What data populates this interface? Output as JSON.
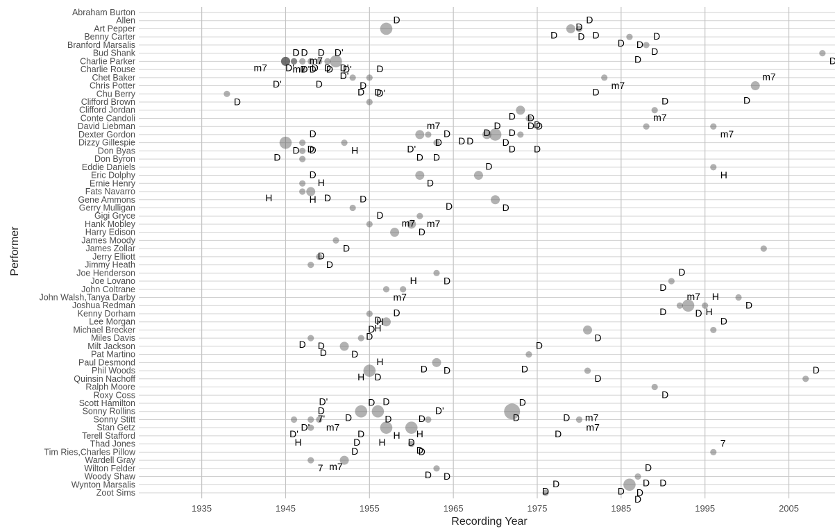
{
  "chart_data": {
    "type": "scatter",
    "title": "",
    "xlabel": "Recording Year",
    "ylabel": "Performer",
    "xlim": [
      1927.5,
      2010.5
    ],
    "x_ticks": [
      "1935",
      "1945",
      "1955",
      "1965",
      "1975",
      "1985",
      "1995",
      "2005"
    ],
    "x_tick_values": [
      1935,
      1945,
      1955,
      1965,
      1975,
      1985,
      1995,
      2005
    ],
    "grid": true,
    "categories": [
      "Abraham Burton",
      "Allen",
      "Art Pepper",
      "Benny Carter",
      "Branford Marsalis",
      "Bud Shank",
      "Charlie Parker",
      "Charlie Rouse",
      "Chet Baker",
      "Chris Potter",
      "Chu Berry",
      "Clifford Brown",
      "Clifford Jordan",
      "Conte Candoli",
      "David Liebman",
      "Dexter Gordon",
      "Dizzy Gillespie",
      "Don Byas",
      "Don Byron",
      "Eddie Daniels",
      "Eric Dolphy",
      "Ernie Henry",
      "Fats Navarro",
      "Gene Ammons",
      "Gerry Mulligan",
      "Gigi Gryce",
      "Hank Mobley",
      "Harry Edison",
      "James Moody",
      "James Zollar",
      "Jerry Elliott",
      "Jimmy Heath",
      "Joe Henderson",
      "Joe Lovano",
      "John Coltrane",
      "John Walsh,Tanya Darby",
      "Joshua Redman",
      "Kenny Dorham",
      "Lee Morgan",
      "Michael Brecker",
      "Miles Davis",
      "Milt Jackson",
      "Pat Martino",
      "Paul Desmond",
      "Phil Woods",
      "Quinsin Nachoff",
      "Ralph Moore",
      "Roxy Coss",
      "Scott Hamilton",
      "Sonny Rollins",
      "Sonny Stitt",
      "Stan Getz",
      "Terell Stafford",
      "Thad Jones",
      "Tim Ries,Charles Pillow",
      "Wardell Gray",
      "Wilton Felder",
      "Woody Shaw",
      "Wynton Marsalis",
      "Zoot Sims"
    ],
    "points": [
      {
        "performer": "Art Pepper",
        "year": 1957,
        "size": 3,
        "label": "D"
      },
      {
        "performer": "Art Pepper",
        "year": 1979,
        "size": 2,
        "label": "D"
      },
      {
        "performer": "Art Pepper",
        "year": 1980,
        "size": 1,
        "label": "D"
      },
      {
        "performer": "Benny Carter",
        "year": 1986,
        "size": 1,
        "label": "D"
      },
      {
        "performer": "Branford Marsalis",
        "year": 1988,
        "size": 1,
        "label": "D"
      },
      {
        "performer": "Bud Shank",
        "year": 2009,
        "size": 1,
        "label": "D"
      },
      {
        "performer": "Charlie Parker",
        "year": 1945,
        "size": 2,
        "label": "D"
      },
      {
        "performer": "Charlie Parker",
        "year": 1945,
        "size": 2,
        "label": "m7"
      },
      {
        "performer": "Charlie Parker",
        "year": 1945,
        "size": 2,
        "label": "D"
      },
      {
        "performer": "Charlie Parker",
        "year": 1946,
        "size": 1,
        "label": "D'"
      },
      {
        "performer": "Charlie Parker",
        "year": 1946,
        "size": 1,
        "label": "D"
      },
      {
        "performer": "Charlie Parker",
        "year": 1947,
        "size": 1,
        "label": "D'"
      },
      {
        "performer": "Charlie Parker",
        "year": 1948,
        "size": 1,
        "label": "D"
      },
      {
        "performer": "Charlie Parker",
        "year": 1949,
        "size": 1,
        "label": "D"
      },
      {
        "performer": "Charlie Parker",
        "year": 1950,
        "size": 1,
        "label": "D'"
      },
      {
        "performer": "Charlie Parker",
        "year": 1951,
        "size": 3,
        "label": "D'"
      },
      {
        "performer": "Charlie Rouse",
        "year": 1947,
        "size": 1,
        "label": "m7"
      },
      {
        "performer": "Chet Baker",
        "year": 1953,
        "size": 1,
        "label": "D"
      },
      {
        "performer": "Chet Baker",
        "year": 1955,
        "size": 1,
        "label": "D"
      },
      {
        "performer": "Chet Baker",
        "year": 1983,
        "size": 1,
        "label": "m7"
      },
      {
        "performer": "Chris Potter",
        "year": 2001,
        "size": 2,
        "label": "m7"
      },
      {
        "performer": "Chu Berry",
        "year": 1938,
        "size": 1,
        "label": "D"
      },
      {
        "performer": "Clifford Brown",
        "year": 1955,
        "size": 1,
        "label": "D'"
      },
      {
        "performer": "Clifford Jordan",
        "year": 1973,
        "size": 2,
        "label": "D"
      },
      {
        "performer": "Clifford Jordan",
        "year": 1989,
        "size": 1,
        "label": "D"
      },
      {
        "performer": "Conte Candoli",
        "year": 1974,
        "size": 1,
        "label": "D"
      },
      {
        "performer": "David Liebman",
        "year": 1988,
        "size": 1,
        "label": "m7"
      },
      {
        "performer": "David Liebman",
        "year": 1996,
        "size": 1,
        "label": "m7"
      },
      {
        "performer": "Dexter Gordon",
        "year": 1961,
        "size": 2,
        "label": "m7"
      },
      {
        "performer": "Dexter Gordon",
        "year": 1962,
        "size": 1,
        "label": "D"
      },
      {
        "performer": "Dexter Gordon",
        "year": 1969,
        "size": 2,
        "label": "D"
      },
      {
        "performer": "Dexter Gordon",
        "year": 1970,
        "size": 3,
        "label": "D"
      },
      {
        "performer": "Dexter Gordon",
        "year": 1973,
        "size": 1,
        "label": "D"
      },
      {
        "performer": "Dizzy Gillespie",
        "year": 1945,
        "size": 3,
        "label": "D"
      },
      {
        "performer": "Dizzy Gillespie",
        "year": 1947,
        "size": 1,
        "label": "D"
      },
      {
        "performer": "Dizzy Gillespie",
        "year": 1952,
        "size": 1,
        "label": "H"
      },
      {
        "performer": "Dizzy Gillespie",
        "year": 1963,
        "size": 1,
        "label": "D"
      },
      {
        "performer": "Don Byas",
        "year": 1947,
        "size": 1,
        "label": ""
      },
      {
        "performer": "Don Byron",
        "year": 1947,
        "size": 1,
        "label": "D"
      },
      {
        "performer": "Eddie Daniels",
        "year": 1996,
        "size": 1,
        "label": "H"
      },
      {
        "performer": "Eric Dolphy",
        "year": 1968,
        "size": 2,
        "label": "D"
      },
      {
        "performer": "Eric Dolphy",
        "year": 1961,
        "size": 2,
        "label": "D"
      },
      {
        "performer": "Ernie Henry",
        "year": 1947,
        "size": 1,
        "label": "D"
      },
      {
        "performer": "Fats Navarro",
        "year": 1947,
        "size": 1,
        "label": "H"
      },
      {
        "performer": "Fats Navarro",
        "year": 1948,
        "size": 2,
        "label": "H"
      },
      {
        "performer": "Gene Ammons",
        "year": 1970,
        "size": 2,
        "label": "D"
      },
      {
        "performer": "Gerry Mulligan",
        "year": 1953,
        "size": 1,
        "label": "D"
      },
      {
        "performer": "Gigi Gryce",
        "year": 1961,
        "size": 1,
        "label": "m7"
      },
      {
        "performer": "Hank Mobley",
        "year": 1955,
        "size": 1,
        "label": "D"
      },
      {
        "performer": "Hank Mobley",
        "year": 1960,
        "size": 2,
        "label": "D"
      },
      {
        "performer": "Harry Edison",
        "year": 1958,
        "size": 2,
        "label": "m7"
      },
      {
        "performer": "James Moody",
        "year": 1951,
        "size": 1,
        "label": "D"
      },
      {
        "performer": "James Zollar",
        "year": 2002,
        "size": 1,
        "label": ""
      },
      {
        "performer": "Jerry Elliott",
        "year": 1949,
        "size": 1,
        "label": "D"
      },
      {
        "performer": "Jimmy Heath",
        "year": 1948,
        "size": 1,
        "label": "D"
      },
      {
        "performer": "Joe Henderson",
        "year": 1963,
        "size": 1,
        "label": "D"
      },
      {
        "performer": "Joe Lovano",
        "year": 1991,
        "size": 1,
        "label": "D"
      },
      {
        "performer": "John Coltrane",
        "year": 1957,
        "size": 1,
        "label": "m7"
      },
      {
        "performer": "John Coltrane",
        "year": 1959,
        "size": 1,
        "label": "H"
      },
      {
        "performer": "John Walsh,Tanya Darby",
        "year": 1999,
        "size": 1,
        "label": "D"
      },
      {
        "performer": "Joshua Redman",
        "year": 1992,
        "size": 1,
        "label": "m7"
      },
      {
        "performer": "Joshua Redman",
        "year": 1993,
        "size": 3,
        "label": "D"
      },
      {
        "performer": "Joshua Redman",
        "year": 1995,
        "size": 1,
        "label": "H"
      },
      {
        "performer": "Kenny Dorham",
        "year": 1955,
        "size": 1,
        "label": "H"
      },
      {
        "performer": "Lee Morgan",
        "year": 1957,
        "size": 2,
        "label": "D"
      },
      {
        "performer": "Michael Brecker",
        "year": 1981,
        "size": 2,
        "label": "D"
      },
      {
        "performer": "Michael Brecker",
        "year": 1996,
        "size": 1,
        "label": "D"
      },
      {
        "performer": "Miles Davis",
        "year": 1948,
        "size": 1,
        "label": "D"
      },
      {
        "performer": "Miles Davis",
        "year": 1954,
        "size": 1,
        "label": "D"
      },
      {
        "performer": "Milt Jackson",
        "year": 1952,
        "size": 2,
        "label": "D"
      },
      {
        "performer": "Pat Martino",
        "year": 1974,
        "size": 1,
        "label": "D"
      },
      {
        "performer": "Paul Desmond",
        "year": 1963,
        "size": 2,
        "label": "D"
      },
      {
        "performer": "Phil Woods",
        "year": 1955,
        "size": 3,
        "label": "H"
      },
      {
        "performer": "Phil Woods",
        "year": 1981,
        "size": 1,
        "label": "D"
      },
      {
        "performer": "Quinsin Nachoff",
        "year": 2007,
        "size": 1,
        "label": "D"
      },
      {
        "performer": "Ralph Moore",
        "year": 1989,
        "size": 1,
        "label": "D"
      },
      {
        "performer": "Sonny Rollins",
        "year": 1954,
        "size": 3,
        "label": "D"
      },
      {
        "performer": "Sonny Rollins",
        "year": 1956,
        "size": 3,
        "label": "D"
      },
      {
        "performer": "Sonny Rollins",
        "year": 1972,
        "size": 4,
        "label": "D"
      },
      {
        "performer": "Sonny Stitt",
        "year": 1946,
        "size": 1,
        "label": "D'"
      },
      {
        "performer": "Sonny Stitt",
        "year": 1948,
        "size": 1,
        "label": "D"
      },
      {
        "performer": "Sonny Stitt",
        "year": 1949,
        "size": 1,
        "label": "m7"
      },
      {
        "performer": "Sonny Stitt",
        "year": 1962,
        "size": 1,
        "label": "D'"
      },
      {
        "performer": "Sonny Stitt",
        "year": 1980,
        "size": 1,
        "label": "m7"
      },
      {
        "performer": "Stan Getz",
        "year": 1948,
        "size": 1,
        "label": "7'"
      },
      {
        "performer": "Stan Getz",
        "year": 1957,
        "size": 3,
        "label": "H"
      },
      {
        "performer": "Stan Getz",
        "year": 1960,
        "size": 3,
        "label": "D"
      },
      {
        "performer": "Thad Jones",
        "year": 1960,
        "size": 1,
        "label": "D"
      },
      {
        "performer": "Tim Ries,Charles Pillow",
        "year": 1996,
        "size": 1,
        "label": "7"
      },
      {
        "performer": "Wardell Gray",
        "year": 1948,
        "size": 1,
        "label": "7"
      },
      {
        "performer": "Wardell Gray",
        "year": 1952,
        "size": 2,
        "label": "D"
      },
      {
        "performer": "Wilton Felder",
        "year": 1963,
        "size": 1,
        "label": "D"
      },
      {
        "performer": "Woody Shaw",
        "year": 1987,
        "size": 1,
        "label": "D"
      },
      {
        "performer": "Wynton Marsalis",
        "year": 1986,
        "size": 3,
        "label": "D"
      },
      {
        "performer": "Zoot Sims",
        "year": 1976,
        "size": 1,
        "label": "D"
      }
    ],
    "extra_labels": [
      {
        "performer": "Allen",
        "year": 1980,
        "label": "D"
      },
      {
        "performer": "Art Pepper",
        "year": 1977,
        "label": "D"
      },
      {
        "performer": "Art Pepper",
        "year": 1982,
        "label": "D"
      },
      {
        "performer": "Benny Carter",
        "year": 1985,
        "label": "D"
      },
      {
        "performer": "Branford Marsalis",
        "year": 1989,
        "label": "D"
      },
      {
        "performer": "Bud Shank",
        "year": 1987,
        "label": "D"
      },
      {
        "performer": "Charlie Parker",
        "year": 1945.5,
        "label": "D'"
      },
      {
        "performer": "Charlie Parker",
        "year": 1948.5,
        "label": "D"
      },
      {
        "performer": "Charlie Parker",
        "year": 1942,
        "label": "m7"
      },
      {
        "performer": "Charlie Parker",
        "year": 1950,
        "label": "D"
      },
      {
        "performer": "Charlie Parker",
        "year": 1952,
        "label": "D'"
      },
      {
        "performer": "Charlie Rouse",
        "year": 1952,
        "label": "D'"
      },
      {
        "performer": "Chet Baker",
        "year": 1949,
        "label": "D"
      },
      {
        "performer": "Chet Baker",
        "year": 1944,
        "label": "D'"
      },
      {
        "performer": "Chris Potter",
        "year": 1954,
        "label": "D"
      },
      {
        "performer": "Chris Potter",
        "year": 1956,
        "label": "D"
      },
      {
        "performer": "Chris Potter",
        "year": 1982,
        "label": "D"
      },
      {
        "performer": "Chu Berry",
        "year": 2000,
        "label": "D"
      },
      {
        "performer": "Clifford Jordan",
        "year": 1972,
        "label": "D"
      },
      {
        "performer": "Conte Candoli",
        "year": 1975,
        "label": "D"
      },
      {
        "performer": "David Liebman",
        "year": 1972,
        "label": "D"
      },
      {
        "performer": "David Liebman",
        "year": 1969,
        "label": "D"
      },
      {
        "performer": "Dexter Gordon",
        "year": 1966,
        "label": "D"
      },
      {
        "performer": "Dexter Gordon",
        "year": 1967,
        "label": "D"
      },
      {
        "performer": "Dizzy Gillespie",
        "year": 1948,
        "label": "D"
      },
      {
        "performer": "Dizzy Gillespie",
        "year": 1972,
        "label": "D"
      },
      {
        "performer": "Dizzy Gillespie",
        "year": 1975,
        "label": "D"
      },
      {
        "performer": "Dizzy Gillespie",
        "year": 1960,
        "label": "D'"
      },
      {
        "performer": "Don Byas",
        "year": 1961,
        "label": "D"
      },
      {
        "performer": "Don Byas",
        "year": 1963,
        "label": "D"
      },
      {
        "performer": "Don Byas",
        "year": 1944,
        "label": "D"
      },
      {
        "performer": "Fats Navarro",
        "year": 1943,
        "label": "H"
      },
      {
        "performer": "Fats Navarro",
        "year": 1950,
        "label": "D"
      },
      {
        "performer": "Gene Ammons",
        "year": 1964.5,
        "label": "D"
      },
      {
        "performer": "Joe Lovano",
        "year": 1990,
        "label": "D"
      },
      {
        "performer": "Joshua Redman",
        "year": 1990,
        "label": "D"
      },
      {
        "performer": "Joshua Redman",
        "year": 1995.5,
        "label": "H"
      },
      {
        "performer": "Kenny Dorham",
        "year": 1956,
        "label": "D"
      },
      {
        "performer": "Lee Morgan",
        "year": 1956,
        "label": "H"
      },
      {
        "performer": "Michael Brecker",
        "year": 1955,
        "label": "D"
      },
      {
        "performer": "Miles Davis",
        "year": 1947,
        "label": "D"
      },
      {
        "performer": "Milt Jackson",
        "year": 1949.5,
        "label": "D"
      },
      {
        "performer": "Paul Desmond",
        "year": 1973.5,
        "label": "D"
      },
      {
        "performer": "Paul Desmond",
        "year": 1961.5,
        "label": "D"
      },
      {
        "performer": "Phil Woods",
        "year": 1956,
        "label": "D"
      },
      {
        "performer": "Phil Woods",
        "year": 1954,
        "label": "H"
      },
      {
        "performer": "Roxy Coss",
        "year": 1949.5,
        "label": "D'"
      },
      {
        "performer": "Roxy Coss",
        "year": 1957,
        "label": "D"
      },
      {
        "performer": "Sonny Rollins",
        "year": 1952.5,
        "label": "D"
      },
      {
        "performer": "Sonny Rollins",
        "year": 1972.5,
        "label": "D"
      },
      {
        "performer": "Sonny Rollins",
        "year": 1978.5,
        "label": "D"
      },
      {
        "performer": "Sonny Rollins",
        "year": 1981.5,
        "label": "m7"
      },
      {
        "performer": "Stan Getz",
        "year": 1946,
        "label": "D'"
      },
      {
        "performer": "Stan Getz",
        "year": 1954,
        "label": "D"
      },
      {
        "performer": "Stan Getz",
        "year": 1961,
        "label": "H"
      },
      {
        "performer": "Stan Getz",
        "year": 1977.5,
        "label": "D"
      },
      {
        "performer": "Terell Stafford",
        "year": 1946.5,
        "label": "H"
      },
      {
        "performer": "Terell Stafford",
        "year": 1953.5,
        "label": "D"
      },
      {
        "performer": "Terell Stafford",
        "year": 1956.5,
        "label": "H"
      },
      {
        "performer": "Terell Stafford",
        "year": 1960,
        "label": "D"
      },
      {
        "performer": "Thad Jones",
        "year": 1961,
        "label": "D"
      },
      {
        "performer": "Wardell Gray",
        "year": 1951,
        "label": "m7"
      },
      {
        "performer": "Wilton Felder",
        "year": 1962,
        "label": "D"
      },
      {
        "performer": "Woody Shaw",
        "year": 1988,
        "label": "D"
      },
      {
        "performer": "Woody Shaw",
        "year": 1990,
        "label": "D"
      },
      {
        "performer": "Wynton Marsalis",
        "year": 1976,
        "label": "D"
      },
      {
        "performer": "Wynton Marsalis",
        "year": 1985,
        "label": "D"
      },
      {
        "performer": "Zoot Sims",
        "year": 1987,
        "label": "D"
      }
    ]
  }
}
